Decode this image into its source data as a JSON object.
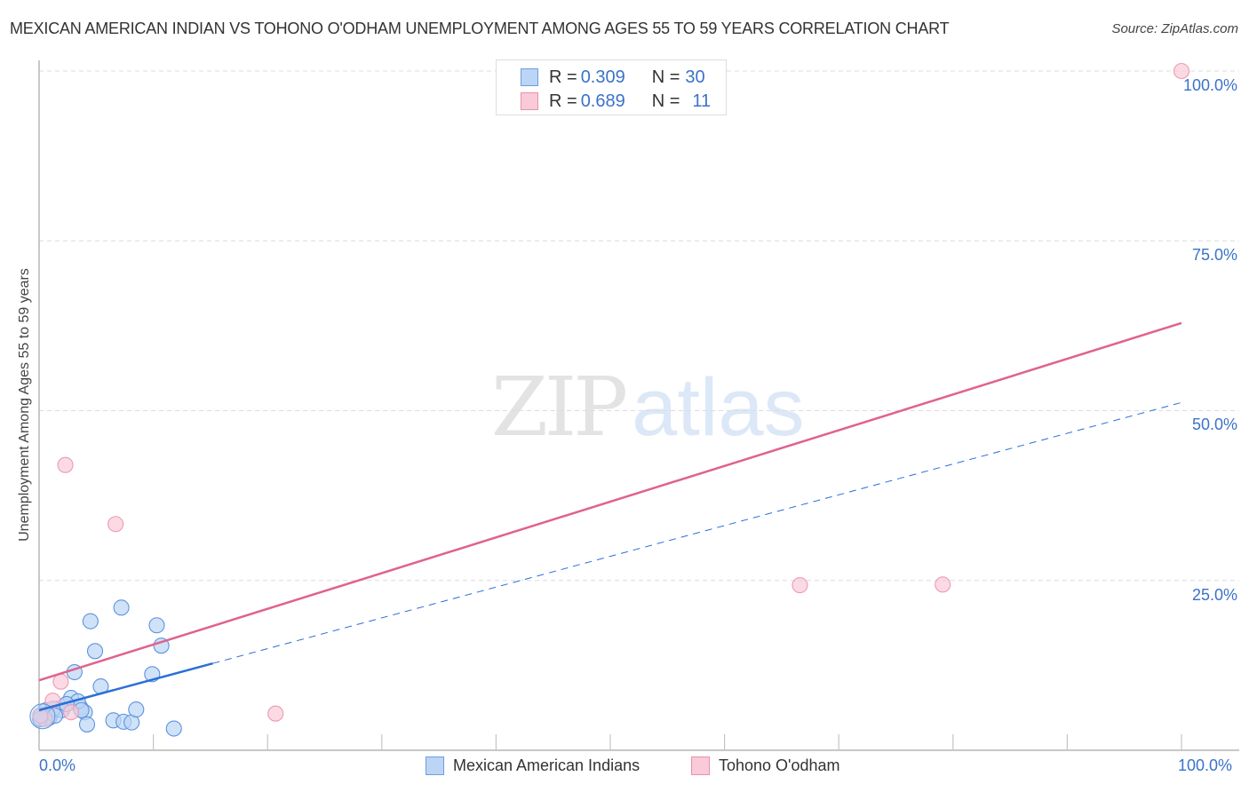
{
  "header": {
    "title": "MEXICAN AMERICAN INDIAN VS TOHONO O'ODHAM UNEMPLOYMENT AMONG AGES 55 TO 59 YEARS CORRELATION CHART",
    "source": "Source: ZipAtlas.com"
  },
  "watermark": {
    "zip": "ZIP",
    "atlas": "atlas"
  },
  "stats_box": {
    "rows": [
      {
        "r_label": "R = ",
        "r_value": "0.309",
        "n_label": "N = ",
        "n_value": "30",
        "color": "#a9c8f0"
      },
      {
        "r_label": "R = ",
        "r_value": "0.689",
        "n_label": "N = ",
        "n_value": "11",
        "color": "#f7bccd"
      }
    ]
  },
  "axes": {
    "y_label": "Unemployment Among Ages 55 to 59 years",
    "y_ticks": [
      "100.0%",
      "75.0%",
      "50.0%",
      "25.0%"
    ],
    "x_ticks": [
      "0.0%",
      "100.0%"
    ]
  },
  "legend": {
    "items": [
      {
        "label": "Mexican American Indians",
        "color": "#a9c8f0",
        "border": "#6a9ee0"
      },
      {
        "label": "Tohono O'odham",
        "color": "#f7bccd",
        "border": "#e890ab"
      }
    ]
  },
  "colors": {
    "blue_point_fill": "#bcd5f5",
    "blue_point_stroke": "#5c93dc",
    "blue_trend": "#2a6fd6",
    "pink_point_fill": "#f9cad8",
    "pink_point_stroke": "#ec9ab4",
    "pink_trend": "#e0628d",
    "tick_label": "#3a72c9",
    "grid": "#dcdcdc"
  },
  "chart_data": {
    "type": "scatter",
    "title": "MEXICAN AMERICAN INDIAN VS TOHONO O'ODHAM UNEMPLOYMENT AMONG AGES 55 TO 59 YEARS CORRELATION CHART",
    "xlabel": "",
    "ylabel": "Unemployment Among Ages 55 to 59 years",
    "xlim": [
      0,
      100
    ],
    "ylim": [
      0,
      100
    ],
    "x_tick_labels": [
      "0.0%",
      "100.0%"
    ],
    "y_tick_labels": [
      "25.0%",
      "50.0%",
      "75.0%",
      "100.0%"
    ],
    "grid": {
      "horizontal": true,
      "style": "dashed"
    },
    "legend_position": "bottom",
    "series": [
      {
        "name": "Mexican American Indians",
        "R": 0.309,
        "N": 30,
        "color": "#a9c8f0",
        "points": [
          [
            0.2,
            5.2
          ],
          [
            0.6,
            5.9
          ],
          [
            1.1,
            5.5
          ],
          [
            1.6,
            6.1
          ],
          [
            2.2,
            6.5
          ],
          [
            2.8,
            7.7
          ],
          [
            3.6,
            6.3
          ],
          [
            4.0,
            5.6
          ],
          [
            4.2,
            3.8
          ],
          [
            3.4,
            7.2
          ],
          [
            2.0,
            5.9
          ],
          [
            0.9,
            4.8
          ],
          [
            0.1,
            4.6
          ],
          [
            4.5,
            19.0
          ],
          [
            4.9,
            14.6
          ],
          [
            7.2,
            21.0
          ],
          [
            3.1,
            11.5
          ],
          [
            5.4,
            9.4
          ],
          [
            6.5,
            4.4
          ],
          [
            7.4,
            4.2
          ],
          [
            8.1,
            4.1
          ],
          [
            8.5,
            6.0
          ],
          [
            9.9,
            11.2
          ],
          [
            10.3,
            18.4
          ],
          [
            10.7,
            15.4
          ],
          [
            11.8,
            3.2
          ],
          [
            1.2,
            6.1
          ],
          [
            2.4,
            6.8
          ],
          [
            3.7,
            5.9
          ],
          [
            1.4,
            5.1
          ]
        ],
        "trend": {
          "x": [
            0,
            100
          ],
          "y": [
            5.9,
            51.2
          ],
          "solid_until_x": 15.2
        }
      },
      {
        "name": "Tohono O'odham",
        "R": 0.689,
        "N": 11,
        "color": "#f7bccd",
        "points": [
          [
            2.3,
            42.0
          ],
          [
            6.7,
            33.3
          ],
          [
            1.9,
            10.1
          ],
          [
            1.2,
            7.3
          ],
          [
            2.8,
            5.6
          ],
          [
            0.5,
            4.6
          ],
          [
            20.7,
            5.4
          ],
          [
            66.6,
            24.3
          ],
          [
            79.1,
            24.4
          ],
          [
            100.0,
            100.0
          ],
          [
            0.1,
            5.1
          ]
        ],
        "trend": {
          "x": [
            0,
            100
          ],
          "y": [
            10.3,
            62.9
          ]
        }
      }
    ]
  }
}
